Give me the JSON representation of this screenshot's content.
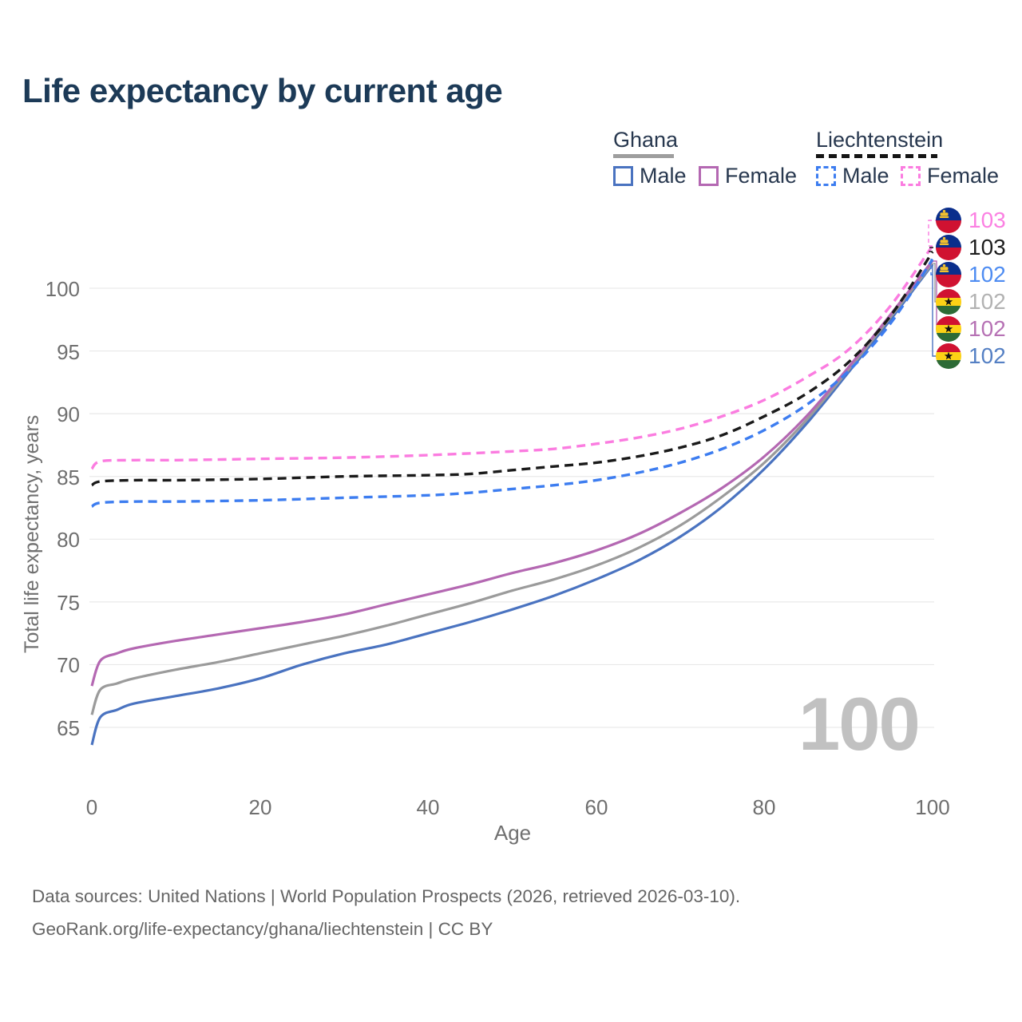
{
  "title": "Life expectancy by current age",
  "legend": {
    "groups": [
      {
        "name": "Ghana",
        "line_style": "solid",
        "underline_color": "#9e9e9e",
        "items": [
          {
            "label": "Male",
            "color": "#4a73c0"
          },
          {
            "label": "Female",
            "color": "#b468b2"
          }
        ]
      },
      {
        "name": "Liechtenstein",
        "line_style": "dashed",
        "underline_color": "#151515",
        "items": [
          {
            "label": "Male",
            "color": "#3d7df0"
          },
          {
            "label": "Female",
            "color": "#fb7ce0"
          }
        ]
      }
    ]
  },
  "watermark": "100",
  "end_labels": [
    {
      "country": "Liechtenstein",
      "series": "Liechtenstein Female",
      "value": "103",
      "color": "#fb80e2"
    },
    {
      "country": "Liechtenstein",
      "series": "Liechtenstein Both sexes",
      "value": "103",
      "color": "#1d1d1d"
    },
    {
      "country": "Liechtenstein",
      "series": "Liechtenstein Male",
      "value": "102",
      "color": "#4e8cf2"
    },
    {
      "country": "Ghana",
      "series": "Ghana Both sexes",
      "value": "102",
      "color": "#b2b2b2"
    },
    {
      "country": "Ghana",
      "series": "Ghana Female",
      "value": "102",
      "color": "#b671b4"
    },
    {
      "country": "Ghana",
      "series": "Ghana Male",
      "value": "102",
      "color": "#5580c4"
    }
  ],
  "footer": {
    "line1": "Data sources: United Nations | World Population Prospects (2026, retrieved 2026-03-10).",
    "line2": "GeoRank.org/life-expectancy/ghana/liechtenstein | CC BY"
  },
  "chart_data": {
    "type": "line",
    "title": "Life expectancy by current age",
    "xlabel": "Age",
    "ylabel": "Total life expectancy, years",
    "xlim": [
      0,
      100
    ],
    "ylim": [
      63,
      104.5
    ],
    "x_ticks": [
      0,
      20,
      40,
      60,
      80,
      100
    ],
    "y_ticks": [
      100,
      95,
      90,
      85,
      80,
      75,
      70,
      65
    ],
    "grid": "horizontal-only",
    "grid_color": "#e9e9e9",
    "legend_position": "top-right",
    "series": [
      {
        "name": "Ghana Male",
        "country": "Ghana",
        "sex": "male",
        "style": "solid",
        "color": "#4a73c0",
        "end_value": 102,
        "points": [
          [
            0,
            63.6
          ],
          [
            1,
            65.8
          ],
          [
            3,
            66.4
          ],
          [
            5,
            66.9
          ],
          [
            10,
            67.5
          ],
          [
            15,
            68.1
          ],
          [
            20,
            68.9
          ],
          [
            25,
            70.0
          ],
          [
            30,
            70.9
          ],
          [
            35,
            71.6
          ],
          [
            40,
            72.5
          ],
          [
            45,
            73.4
          ],
          [
            50,
            74.4
          ],
          [
            55,
            75.5
          ],
          [
            60,
            76.8
          ],
          [
            65,
            78.3
          ],
          [
            70,
            80.2
          ],
          [
            75,
            82.6
          ],
          [
            80,
            85.6
          ],
          [
            85,
            89.2
          ],
          [
            90,
            93.3
          ],
          [
            95,
            97.5
          ],
          [
            100,
            101.9
          ]
        ]
      },
      {
        "name": "Ghana Both sexes",
        "country": "Ghana",
        "sex": "both",
        "style": "solid",
        "color": "#9b9b9b",
        "end_value": 102,
        "points": [
          [
            0,
            66.0
          ],
          [
            1,
            68.0
          ],
          [
            3,
            68.5
          ],
          [
            5,
            68.9
          ],
          [
            10,
            69.6
          ],
          [
            15,
            70.2
          ],
          [
            20,
            70.9
          ],
          [
            25,
            71.6
          ],
          [
            30,
            72.3
          ],
          [
            35,
            73.1
          ],
          [
            40,
            74.0
          ],
          [
            45,
            74.9
          ],
          [
            50,
            75.9
          ],
          [
            55,
            76.8
          ],
          [
            60,
            77.9
          ],
          [
            65,
            79.3
          ],
          [
            70,
            81.1
          ],
          [
            75,
            83.4
          ],
          [
            80,
            86.1
          ],
          [
            85,
            89.5
          ],
          [
            90,
            93.5
          ],
          [
            95,
            97.7
          ],
          [
            100,
            102.0
          ]
        ]
      },
      {
        "name": "Ghana Female",
        "country": "Ghana",
        "sex": "female",
        "style": "solid",
        "color": "#b468b2",
        "end_value": 102,
        "points": [
          [
            0,
            68.3
          ],
          [
            1,
            70.3
          ],
          [
            3,
            70.9
          ],
          [
            5,
            71.3
          ],
          [
            10,
            71.9
          ],
          [
            15,
            72.4
          ],
          [
            20,
            72.9
          ],
          [
            25,
            73.4
          ],
          [
            30,
            74.0
          ],
          [
            35,
            74.8
          ],
          [
            40,
            75.6
          ],
          [
            45,
            76.4
          ],
          [
            50,
            77.3
          ],
          [
            55,
            78.1
          ],
          [
            60,
            79.1
          ],
          [
            65,
            80.4
          ],
          [
            70,
            82.1
          ],
          [
            75,
            84.1
          ],
          [
            80,
            86.6
          ],
          [
            85,
            89.8
          ],
          [
            90,
            93.7
          ],
          [
            95,
            97.9
          ],
          [
            100,
            102.2
          ]
        ]
      },
      {
        "name": "Liechtenstein Male",
        "country": "Liechtenstein",
        "sex": "male",
        "style": "dashed",
        "color": "#3d7df0",
        "end_value": 102,
        "points": [
          [
            0,
            82.6
          ],
          [
            1,
            82.9
          ],
          [
            5,
            83.0
          ],
          [
            10,
            83.0
          ],
          [
            20,
            83.1
          ],
          [
            30,
            83.3
          ],
          [
            40,
            83.5
          ],
          [
            45,
            83.7
          ],
          [
            50,
            84.0
          ],
          [
            55,
            84.3
          ],
          [
            60,
            84.7
          ],
          [
            65,
            85.3
          ],
          [
            70,
            86.1
          ],
          [
            75,
            87.2
          ],
          [
            80,
            88.7
          ],
          [
            85,
            90.7
          ],
          [
            90,
            93.4
          ],
          [
            95,
            97.2
          ],
          [
            100,
            102.3
          ]
        ]
      },
      {
        "name": "Liechtenstein Both sexes",
        "country": "Liechtenstein",
        "sex": "both",
        "style": "dashed",
        "color": "#1a1a1a",
        "end_value": 103,
        "points": [
          [
            0,
            84.3
          ],
          [
            1,
            84.6
          ],
          [
            5,
            84.7
          ],
          [
            10,
            84.7
          ],
          [
            20,
            84.8
          ],
          [
            30,
            85.0
          ],
          [
            40,
            85.1
          ],
          [
            45,
            85.2
          ],
          [
            50,
            85.5
          ],
          [
            55,
            85.8
          ],
          [
            60,
            86.1
          ],
          [
            65,
            86.6
          ],
          [
            70,
            87.3
          ],
          [
            75,
            88.3
          ],
          [
            80,
            89.8
          ],
          [
            85,
            91.6
          ],
          [
            90,
            94.1
          ],
          [
            95,
            97.8
          ],
          [
            100,
            102.9
          ]
        ]
      },
      {
        "name": "Liechtenstein Female",
        "country": "Liechtenstein",
        "sex": "female",
        "style": "dashed",
        "color": "#fb7ce0",
        "end_value": 103,
        "points": [
          [
            0,
            85.6
          ],
          [
            1,
            86.2
          ],
          [
            5,
            86.3
          ],
          [
            10,
            86.3
          ],
          [
            20,
            86.4
          ],
          [
            30,
            86.5
          ],
          [
            40,
            86.7
          ],
          [
            50,
            87.0
          ],
          [
            55,
            87.2
          ],
          [
            60,
            87.6
          ],
          [
            65,
            88.1
          ],
          [
            70,
            88.8
          ],
          [
            75,
            89.8
          ],
          [
            80,
            91.1
          ],
          [
            85,
            92.9
          ],
          [
            90,
            95.1
          ],
          [
            95,
            98.6
          ],
          [
            100,
            103.4
          ]
        ]
      }
    ]
  }
}
